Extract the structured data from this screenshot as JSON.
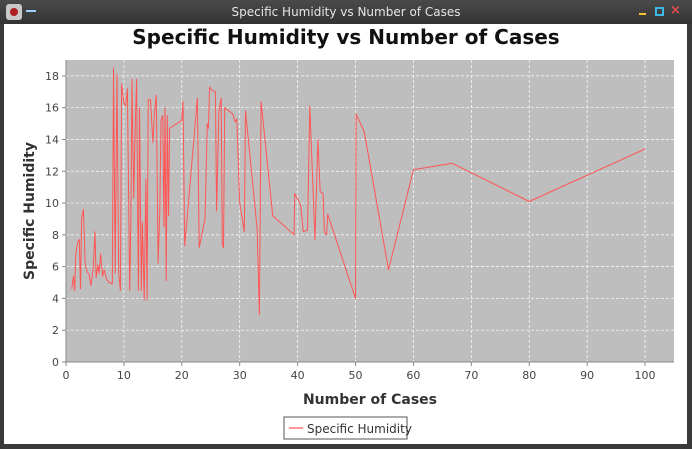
{
  "window": {
    "title": "Specific Humidity vs Number of Cases"
  },
  "chart_data": {
    "type": "line",
    "title": "Specific Humidity vs Number of Cases",
    "xlabel": "Number of Cases",
    "ylabel": "Specific Humidity",
    "xlim": [
      0,
      105
    ],
    "ylim": [
      0,
      19
    ],
    "xticks": [
      0,
      10,
      20,
      30,
      40,
      50,
      60,
      70,
      80,
      90,
      100
    ],
    "yticks": [
      0,
      2,
      4,
      6,
      8,
      10,
      12,
      14,
      16,
      18
    ],
    "grid": true,
    "legend": "bottom-center",
    "series": [
      {
        "name": "Specific Humidity",
        "color": "#ff5555",
        "points": [
          [
            1.0,
            4.6
          ],
          [
            1.3,
            5.4
          ],
          [
            1.5,
            4.5
          ],
          [
            1.7,
            6.8
          ],
          [
            2.0,
            7.5
          ],
          [
            2.3,
            7.7
          ],
          [
            2.5,
            4.6
          ],
          [
            2.7,
            9.0
          ],
          [
            3.0,
            9.6
          ],
          [
            3.3,
            6.3
          ],
          [
            3.6,
            5.7
          ],
          [
            4.0,
            5.5
          ],
          [
            4.3,
            4.8
          ],
          [
            4.7,
            5.9
          ],
          [
            5.0,
            8.2
          ],
          [
            5.2,
            5.3
          ],
          [
            5.5,
            6.1
          ],
          [
            5.7,
            5.6
          ],
          [
            6.0,
            6.8
          ],
          [
            6.3,
            5.4
          ],
          [
            6.6,
            5.8
          ],
          [
            7.0,
            5.2
          ],
          [
            7.5,
            5.0
          ],
          [
            8.0,
            4.9
          ],
          [
            8.2,
            18.5
          ],
          [
            8.5,
            5.6
          ],
          [
            8.8,
            18.1
          ],
          [
            9.1,
            5.6
          ],
          [
            9.4,
            4.5
          ],
          [
            9.6,
            17.5
          ],
          [
            10.0,
            16.3
          ],
          [
            10.3,
            16.1
          ],
          [
            10.6,
            17.2
          ],
          [
            11.0,
            4.5
          ],
          [
            11.2,
            9.0
          ],
          [
            11.4,
            17.8
          ],
          [
            11.7,
            10.3
          ],
          [
            12.0,
            15.5
          ],
          [
            12.2,
            17.8
          ],
          [
            12.5,
            4.5
          ],
          [
            12.7,
            16.0
          ],
          [
            13.0,
            4.5
          ],
          [
            13.2,
            8.8
          ],
          [
            13.5,
            3.9
          ],
          [
            13.8,
            11.5
          ],
          [
            14.0,
            3.9
          ],
          [
            14.2,
            16.5
          ],
          [
            14.6,
            16.5
          ],
          [
            15.0,
            13.8
          ],
          [
            15.3,
            15.8
          ],
          [
            15.6,
            16.8
          ],
          [
            15.9,
            6.2
          ],
          [
            16.2,
            9.5
          ],
          [
            16.4,
            15.2
          ],
          [
            16.7,
            15.5
          ],
          [
            16.9,
            8.5
          ],
          [
            17.1,
            16.0
          ],
          [
            17.3,
            5.1
          ],
          [
            17.5,
            15.5
          ],
          [
            17.7,
            9.2
          ],
          [
            17.9,
            14.7
          ],
          [
            20.0,
            15.2
          ],
          [
            20.2,
            16.4
          ],
          [
            20.5,
            7.3
          ],
          [
            22.7,
            16.6
          ],
          [
            23.0,
            7.2
          ],
          [
            24.0,
            9.0
          ],
          [
            24.4,
            15.0
          ],
          [
            24.6,
            14.7
          ],
          [
            24.8,
            17.3
          ],
          [
            25.2,
            17.1
          ],
          [
            25.8,
            17.0
          ],
          [
            26.0,
            9.5
          ],
          [
            26.4,
            15.8
          ],
          [
            26.8,
            16.6
          ],
          [
            27.0,
            7.4
          ],
          [
            27.2,
            7.2
          ],
          [
            27.4,
            16.0
          ],
          [
            28.8,
            15.6
          ],
          [
            29.2,
            15.1
          ],
          [
            29.5,
            15.3
          ],
          [
            30.0,
            10.0
          ],
          [
            30.8,
            8.2
          ],
          [
            31.0,
            15.8
          ],
          [
            33.0,
            8.4
          ],
          [
            33.4,
            3.0
          ],
          [
            33.7,
            16.4
          ],
          [
            35.7,
            9.2
          ],
          [
            39.4,
            8.0
          ],
          [
            39.5,
            10.6
          ],
          [
            40.5,
            9.9
          ],
          [
            41.0,
            8.2
          ],
          [
            41.7,
            8.3
          ],
          [
            42.1,
            16.1
          ],
          [
            43.0,
            7.7
          ],
          [
            43.5,
            14.0
          ],
          [
            43.9,
            10.7
          ],
          [
            44.4,
            10.6
          ],
          [
            44.6,
            8.2
          ],
          [
            45.0,
            8.0
          ],
          [
            45.2,
            9.3
          ],
          [
            50.0,
            4.0
          ],
          [
            50.1,
            15.6
          ],
          [
            51.5,
            14.5
          ],
          [
            55.7,
            5.8
          ],
          [
            60.0,
            12.1
          ],
          [
            66.7,
            12.5
          ],
          [
            80.0,
            10.1
          ],
          [
            100.0,
            13.4
          ]
        ]
      }
    ]
  }
}
